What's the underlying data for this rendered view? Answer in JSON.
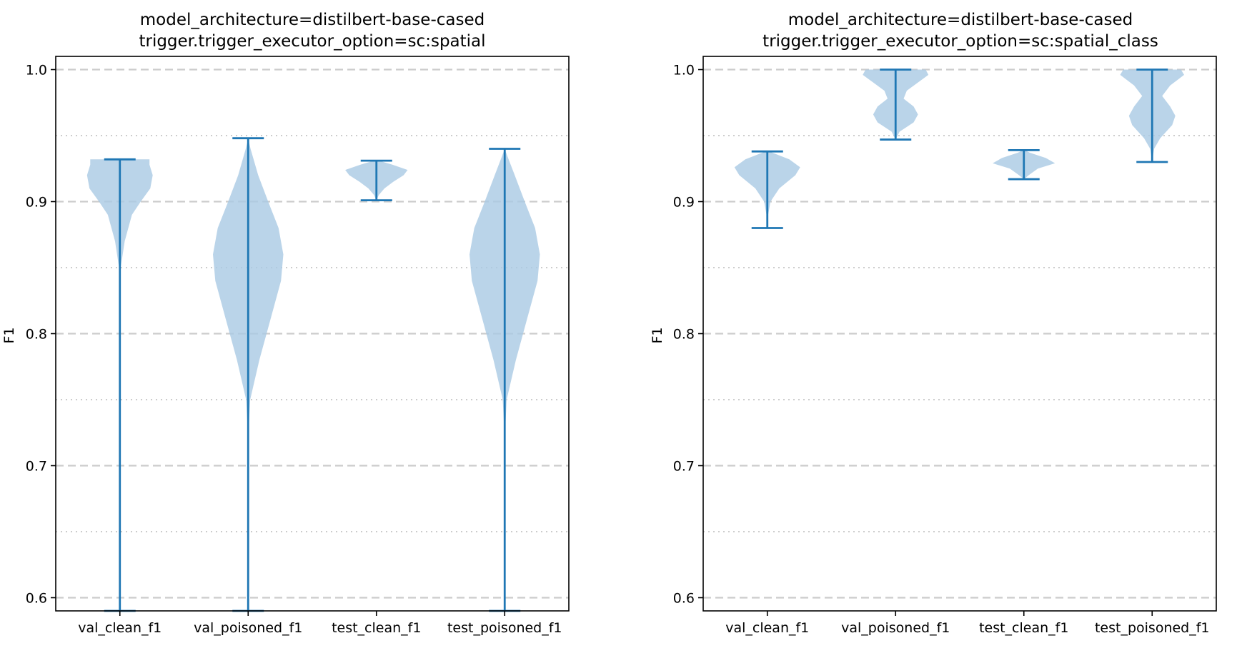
{
  "figure": {
    "background": "#ffffff"
  },
  "chart_data": [
    {
      "type": "violin",
      "title": [
        "model_architecture=distilbert-base-cased",
        "trigger.trigger_executor_option=sc:spatial"
      ],
      "xlabel": "",
      "ylabel": "F1",
      "categories": [
        "val_clean_f1",
        "val_poisoned_f1",
        "test_clean_f1",
        "test_poisoned_f1"
      ],
      "ylim": [
        0.59,
        1.01
      ],
      "yticks": [
        0.6,
        0.7,
        0.8,
        0.9,
        1.0
      ],
      "ytick_labels": [
        "0.6",
        "0.7",
        "0.8",
        "0.9",
        "1.0"
      ],
      "grid": {
        "major_dashed": [
          0.6,
          0.7,
          0.8,
          0.9,
          1.0
        ],
        "minor_dotted": [
          0.65,
          0.75,
          0.85,
          0.95
        ]
      },
      "colors": {
        "body": "#a9c9e3",
        "line": "#1f77b4",
        "grid": "#cccccc"
      },
      "series": [
        {
          "category": "val_clean_f1",
          "min": 0.59,
          "max": 0.932,
          "profile": [
            [
              0.59,
              0.0
            ],
            [
              0.84,
              0.0
            ],
            [
              0.85,
              0.02
            ],
            [
              0.87,
              0.12
            ],
            [
              0.89,
              0.3
            ],
            [
              0.9,
              0.52
            ],
            [
              0.91,
              0.76
            ],
            [
              0.92,
              0.82
            ],
            [
              0.928,
              0.74
            ],
            [
              0.932,
              0.74
            ]
          ]
        },
        {
          "category": "val_poisoned_f1",
          "min": 0.59,
          "max": 0.948,
          "profile": [
            [
              0.59,
              0.0
            ],
            [
              0.72,
              0.0
            ],
            [
              0.75,
              0.05
            ],
            [
              0.78,
              0.28
            ],
            [
              0.81,
              0.55
            ],
            [
              0.84,
              0.82
            ],
            [
              0.86,
              0.88
            ],
            [
              0.88,
              0.76
            ],
            [
              0.9,
              0.5
            ],
            [
              0.92,
              0.25
            ],
            [
              0.94,
              0.06
            ],
            [
              0.948,
              0.0
            ]
          ]
        },
        {
          "category": "test_clean_f1",
          "min": 0.901,
          "max": 0.931,
          "profile": [
            [
              0.901,
              0.0
            ],
            [
              0.905,
              0.06
            ],
            [
              0.91,
              0.2
            ],
            [
              0.915,
              0.42
            ],
            [
              0.92,
              0.68
            ],
            [
              0.924,
              0.78
            ],
            [
              0.928,
              0.4
            ],
            [
              0.931,
              0.06
            ]
          ]
        },
        {
          "category": "test_poisoned_f1",
          "min": 0.59,
          "max": 0.94,
          "profile": [
            [
              0.59,
              0.0
            ],
            [
              0.72,
              0.0
            ],
            [
              0.75,
              0.05
            ],
            [
              0.78,
              0.28
            ],
            [
              0.81,
              0.55
            ],
            [
              0.84,
              0.82
            ],
            [
              0.86,
              0.88
            ],
            [
              0.88,
              0.76
            ],
            [
              0.9,
              0.5
            ],
            [
              0.92,
              0.25
            ],
            [
              0.935,
              0.06
            ],
            [
              0.94,
              0.0
            ]
          ]
        }
      ]
    },
    {
      "type": "violin",
      "title": [
        "model_architecture=distilbert-base-cased",
        "trigger.trigger_executor_option=sc:spatial_class"
      ],
      "xlabel": "",
      "ylabel": "F1",
      "categories": [
        "val_clean_f1",
        "val_poisoned_f1",
        "test_clean_f1",
        "test_poisoned_f1"
      ],
      "ylim": [
        0.59,
        1.01
      ],
      "yticks": [
        0.6,
        0.7,
        0.8,
        0.9,
        1.0
      ],
      "ytick_labels": [
        "0.6",
        "0.7",
        "0.8",
        "0.9",
        "1.0"
      ],
      "grid": {
        "major_dashed": [
          0.6,
          0.7,
          0.8,
          0.9,
          1.0
        ],
        "minor_dotted": [
          0.65,
          0.75,
          0.85,
          0.95
        ]
      },
      "colors": {
        "body": "#a9c9e3",
        "line": "#1f77b4",
        "grid": "#cccccc"
      },
      "series": [
        {
          "category": "val_clean_f1",
          "min": 0.88,
          "max": 0.938,
          "profile": [
            [
              0.88,
              0.0
            ],
            [
              0.89,
              0.02
            ],
            [
              0.9,
              0.08
            ],
            [
              0.91,
              0.3
            ],
            [
              0.92,
              0.7
            ],
            [
              0.926,
              0.82
            ],
            [
              0.932,
              0.55
            ],
            [
              0.938,
              0.05
            ]
          ]
        },
        {
          "category": "val_poisoned_f1",
          "min": 0.947,
          "max": 1.0,
          "profile": [
            [
              0.947,
              0.0
            ],
            [
              0.953,
              0.1
            ],
            [
              0.96,
              0.45
            ],
            [
              0.966,
              0.56
            ],
            [
              0.972,
              0.45
            ],
            [
              0.978,
              0.2
            ],
            [
              0.984,
              0.28
            ],
            [
              0.99,
              0.55
            ],
            [
              0.996,
              0.82
            ],
            [
              1.0,
              0.75
            ]
          ]
        },
        {
          "category": "test_clean_f1",
          "min": 0.917,
          "max": 0.939,
          "profile": [
            [
              0.917,
              0.0
            ],
            [
              0.92,
              0.12
            ],
            [
              0.925,
              0.35
            ],
            [
              0.929,
              0.78
            ],
            [
              0.933,
              0.55
            ],
            [
              0.937,
              0.15
            ],
            [
              0.939,
              0.02
            ]
          ]
        },
        {
          "category": "test_poisoned_f1",
          "min": 0.93,
          "max": 1.0,
          "profile": [
            [
              0.93,
              0.0
            ],
            [
              0.94,
              0.05
            ],
            [
              0.948,
              0.2
            ],
            [
              0.958,
              0.5
            ],
            [
              0.965,
              0.58
            ],
            [
              0.972,
              0.45
            ],
            [
              0.98,
              0.25
            ],
            [
              0.988,
              0.45
            ],
            [
              0.996,
              0.8
            ],
            [
              1.0,
              0.72
            ]
          ]
        }
      ]
    }
  ]
}
